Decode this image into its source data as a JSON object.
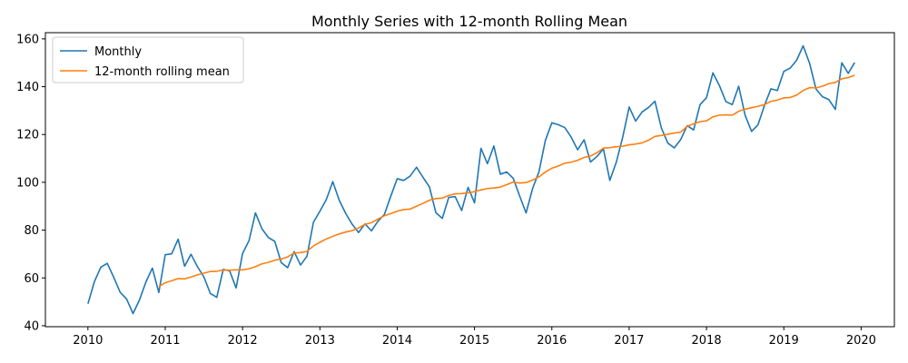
{
  "chart_data": {
    "type": "line",
    "title": "Monthly Series with 12-month Rolling Mean",
    "xlabel": "",
    "ylabel": "",
    "xlim": [
      2009.45,
      2020.43
    ],
    "ylim": [
      39.6,
      162.6
    ],
    "xticks": [
      2010,
      2011,
      2012,
      2013,
      2014,
      2015,
      2016,
      2017,
      2018,
      2019,
      2020
    ],
    "yticks": [
      40,
      60,
      80,
      100,
      120,
      140,
      160
    ],
    "grid": false,
    "legend": "top-left",
    "series": [
      {
        "name": "Monthly",
        "color": "#1f77b4",
        "start_year": 2010,
        "values": [
          49.2,
          58.4,
          64.5,
          66.1,
          60.3,
          54.0,
          51.2,
          45.1,
          50.8,
          58.3,
          64.1,
          53.9,
          69.7,
          70.1,
          76.2,
          64.9,
          69.9,
          64.7,
          60.4,
          53.5,
          51.9,
          63.6,
          62.9,
          55.8,
          70.2,
          75.6,
          87.2,
          80.6,
          76.9,
          75.3,
          66.4,
          64.3,
          71.0,
          65.4,
          69.1,
          83.3,
          87.9,
          92.8,
          100.3,
          92.5,
          87.0,
          82.5,
          79.0,
          82.6,
          79.7,
          83.7,
          86.5,
          94.2,
          101.5,
          100.8,
          102.6,
          106.3,
          102.1,
          98.1,
          87.3,
          84.9,
          93.7,
          94.0,
          88.2,
          97.9,
          91.4,
          114.2,
          107.8,
          115.2,
          103.4,
          104.3,
          101.7,
          94.3,
          87.2,
          97.3,
          104.4,
          117.6,
          124.9,
          124.1,
          122.9,
          118.9,
          113.6,
          117.8,
          108.5,
          110.8,
          114.0,
          100.8,
          108.4,
          118.9,
          131.5,
          125.6,
          129.4,
          131.3,
          133.9,
          122.7,
          116.4,
          114.4,
          117.9,
          123.7,
          121.9,
          132.5,
          135.4,
          145.8,
          140.5,
          133.8,
          132.5,
          140.2,
          128.0,
          121.3,
          124.1,
          132.2,
          139.1,
          138.4,
          146.4,
          147.8,
          151.1,
          157.1,
          149.8,
          139.0,
          135.8,
          134.6,
          130.5,
          150.0,
          145.6,
          150.1
        ]
      },
      {
        "name": "12-month rolling mean",
        "color": "#ff7f0e",
        "start_year": 2010,
        "values": [
          null,
          null,
          null,
          null,
          null,
          null,
          null,
          null,
          null,
          null,
          null,
          56.4,
          58.0,
          58.8,
          59.7,
          59.6,
          60.4,
          61.3,
          62.0,
          62.7,
          62.8,
          63.3,
          63.2,
          63.4,
          63.4,
          63.8,
          64.7,
          65.9,
          66.5,
          67.4,
          67.9,
          68.8,
          70.4,
          70.6,
          71.1,
          73.4,
          74.9,
          76.3,
          77.4,
          78.4,
          79.2,
          79.8,
          80.9,
          82.4,
          83.1,
          84.6,
          86.0,
          86.9,
          87.9,
          88.6,
          88.8,
          90.0,
          91.2,
          92.5,
          93.2,
          93.4,
          94.5,
          95.2,
          95.3,
          95.6,
          96.1,
          96.8,
          97.4,
          97.6,
          98.0,
          99.0,
          100.1,
          99.7,
          99.9,
          100.9,
          102.3,
          104.3,
          105.9,
          106.8,
          108.0,
          108.4,
          109.2,
          110.4,
          111.0,
          112.4,
          114.3,
          114.5,
          114.9,
          115.1,
          115.7,
          116.0,
          116.5,
          117.6,
          119.2,
          119.6,
          120.1,
          120.6,
          121.0,
          123.4,
          124.5,
          125.4,
          125.7,
          127.4,
          128.1,
          128.2,
          128.1,
          129.7,
          130.6,
          131.2,
          131.8,
          132.5,
          133.9,
          134.4,
          135.3,
          135.5,
          136.5,
          138.4,
          139.6,
          139.5,
          140.2,
          141.3,
          141.8,
          143.3,
          143.8,
          144.8
        ]
      }
    ]
  }
}
